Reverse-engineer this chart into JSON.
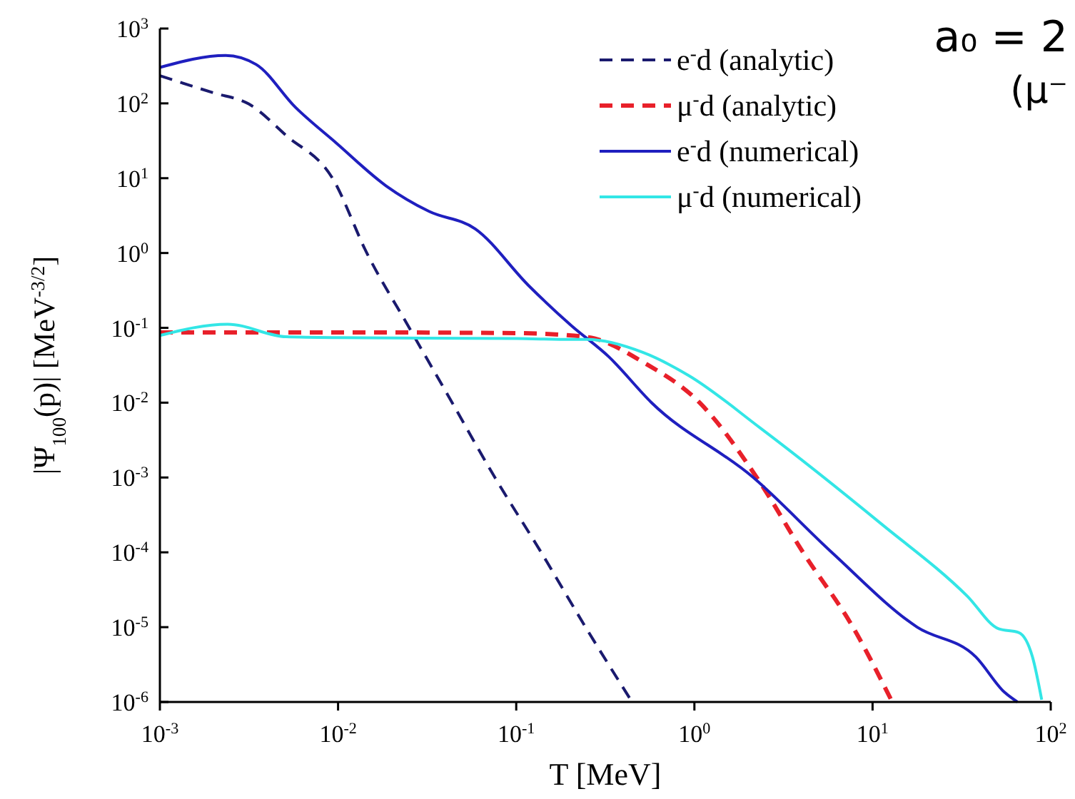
{
  "chart_data": {
    "type": "line",
    "xlabel": "T [MeV]",
    "ylabel": "|Ψ$_{100}$(p)| [MeV$^{-3/2}$]",
    "log": "xy",
    "grid": false,
    "legend": "top right",
    "xlim": [
      0.001,
      100
    ],
    "ylim": [
      1e-06,
      1000
    ],
    "xticks": [
      {
        "value": 0.001,
        "label": "10$^{-3}$"
      },
      {
        "value": 0.01,
        "label": "10$^{-2}$"
      },
      {
        "value": 0.1,
        "label": "10$^{-1}$"
      },
      {
        "value": 1,
        "label": "10$^{0}$"
      },
      {
        "value": 10,
        "label": "10$^{1}$"
      },
      {
        "value": 100,
        "label": "10$^{2}$"
      }
    ],
    "yticks": [
      {
        "value": 1e-06,
        "label": "10$^{-6}$"
      },
      {
        "value": 1e-05,
        "label": "10$^{-5}$"
      },
      {
        "value": 0.0001,
        "label": "10$^{-4}$"
      },
      {
        "value": 0.001,
        "label": "10$^{-3}$"
      },
      {
        "value": 0.01,
        "label": "10$^{-2}$"
      },
      {
        "value": 0.1,
        "label": "10$^{-1}$"
      },
      {
        "value": 1,
        "label": "10$^{0}$"
      },
      {
        "value": 10,
        "label": "10$^{1}$"
      },
      {
        "value": 100,
        "label": "10$^{2}$"
      },
      {
        "value": 1000,
        "label": "10$^{3}$"
      }
    ],
    "annotations": [
      "a₀ = 2",
      "(μ⁻"
    ],
    "series": [
      {
        "name": "e$^{-}$d (analytic)",
        "color": "#1a1a6e",
        "line_style": "dashed",
        "x": [
          0.001,
          0.002,
          0.00316,
          0.00513,
          0.0093,
          0.0145,
          0.0251,
          0.0437,
          0.0759,
          0.138,
          0.245,
          0.447
        ],
        "values": [
          234,
          138,
          98,
          37,
          10,
          1,
          0.1,
          0.01,
          0.001,
          0.0001,
          1e-05,
          1e-06
        ]
      },
      {
        "name": "μ$^{-}$d (analytic)",
        "color": "#e8202a",
        "line_style": "dashed",
        "x": [
          0.001,
          0.01,
          0.1,
          0.204,
          0.275,
          0.513,
          1.07,
          2.24,
          4.07,
          7.76,
          12.9
        ],
        "values": [
          0.087,
          0.087,
          0.085,
          0.079,
          0.072,
          0.035,
          0.01,
          0.001,
          0.0001,
          1e-05,
          1e-06
        ]
      },
      {
        "name": "e$^{-}$d (numerical)",
        "color": "#1f1fbf",
        "line_style": "solid",
        "x": [
          0.001,
          0.00234,
          0.00347,
          0.00575,
          0.00977,
          0.0186,
          0.0324,
          0.0589,
          0.117,
          0.204,
          0.331,
          0.575,
          2.14,
          5.9,
          17.8,
          38,
          55,
          65
        ],
        "values": [
          302,
          437,
          331,
          89,
          29.5,
          7.9,
          3.6,
          2.1,
          0.37,
          0.107,
          0.041,
          0.01,
          0.001,
          0.0001,
          1e-05,
          4e-06,
          1.35e-06,
          1e-06
        ]
      },
      {
        "name": "μ$^{-}$d (numerical)",
        "color": "#33e6e6",
        "line_style": "solid",
        "x": [
          0.001,
          0.0024,
          0.0051,
          0.01,
          0.1,
          0.204,
          0.25,
          0.513,
          0.93,
          2.34,
          11.2,
          34,
          51,
          66,
          79,
          89
        ],
        "values": [
          0.079,
          0.112,
          0.076,
          0.074,
          0.072,
          0.07,
          0.07,
          0.047,
          0.023,
          0.0046,
          0.00024,
          2.6e-05,
          9.5e-06,
          8.5e-06,
          4e-06,
          1.07e-06
        ]
      }
    ]
  }
}
